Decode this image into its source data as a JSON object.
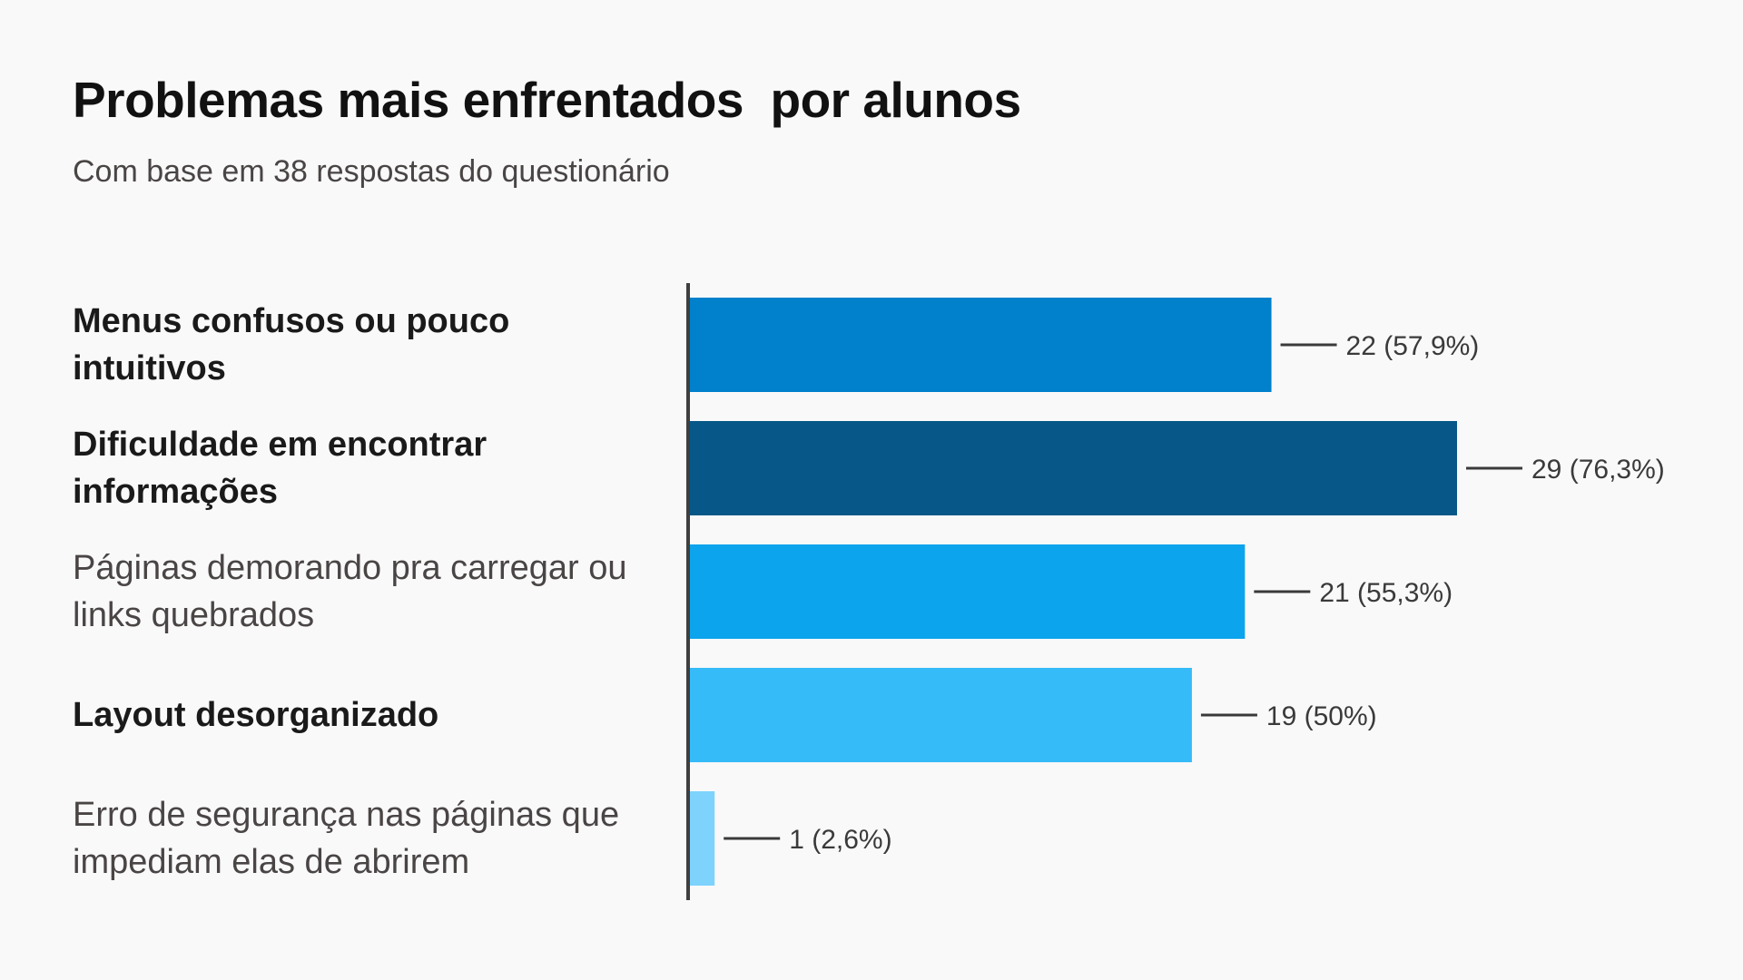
{
  "title": "Problemas mais enfrentados  por alunos",
  "subtitle": "Com base em 38 respostas do questionário",
  "chart_data": {
    "type": "bar",
    "orientation": "horizontal",
    "title": "Problemas mais enfrentados  por alunos",
    "subtitle": "Com base em 38 respostas do questionário",
    "categories": [
      "Menus confusos ou pouco intuitivos",
      "Dificuldade em encontrar informações",
      "Páginas demorando pra carregar ou links quebrados",
      "Layout desorganizado",
      "Erro de segurança nas páginas que impediam elas de abrirem"
    ],
    "category_emphasis": [
      "bold",
      "bold",
      "light",
      "bold",
      "light"
    ],
    "values": [
      22,
      29,
      21,
      19,
      1
    ],
    "value_labels": [
      "22 (57,9%)",
      "29 (76,3%)",
      "21 (55,3%)",
      "19 (50%)",
      "1 (2,6%)"
    ],
    "bar_colors": [
      "#0180cb",
      "#075888",
      "#0ca4ec",
      "#36bbf9",
      "#7dd3fc"
    ],
    "xlim": [
      0,
      38
    ],
    "grid": false,
    "legend": "none"
  }
}
